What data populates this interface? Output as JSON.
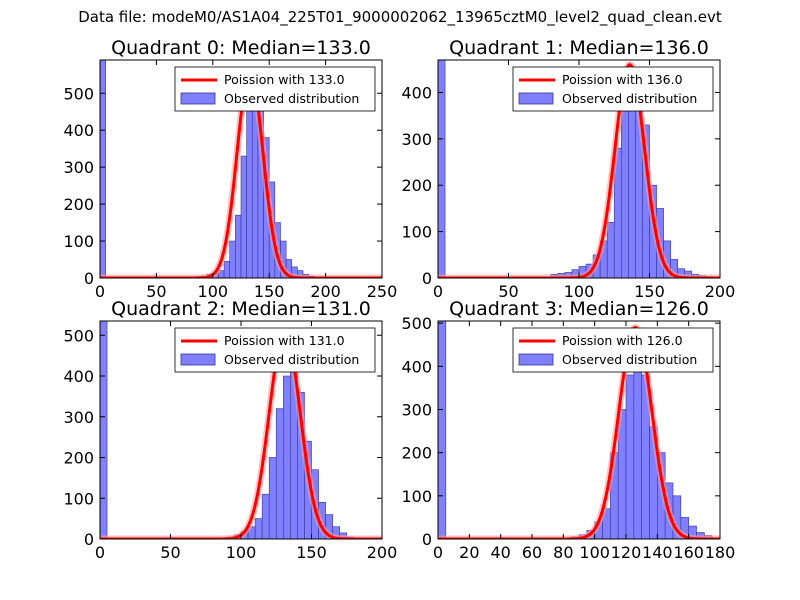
{
  "suptitle": "Data file: modeM0/AS1A04_225T01_9000002062_13965cztM0_level2_quad_clean.evt",
  "colors": {
    "fit": "#ff0000",
    "fit_halo": "#ff9999",
    "bar_fill": "#8080ff",
    "bar_edge": "#333399",
    "axes": "#000000"
  },
  "chart_data": [
    {
      "type": "bar",
      "title": "Quadrant 0: Median=133.0",
      "xlim": [
        0,
        250
      ],
      "ylim": [
        0,
        590
      ],
      "xticks": [
        0,
        50,
        100,
        150,
        200,
        250
      ],
      "yticks": [
        0,
        100,
        200,
        300,
        400,
        500
      ],
      "legend": {
        "position": "top-right",
        "fit_label": "Poission with 133.0",
        "hist_label": "Observed distribution"
      },
      "median": 133.0,
      "peak": 560,
      "sigma": 11.5,
      "bins": [
        [
          0,
          590
        ],
        [
          70,
          1
        ],
        [
          75,
          2
        ],
        [
          80,
          3
        ],
        [
          85,
          4
        ],
        [
          90,
          5
        ],
        [
          95,
          10
        ],
        [
          100,
          12
        ],
        [
          105,
          20
        ],
        [
          110,
          45
        ],
        [
          115,
          100
        ],
        [
          120,
          170
        ],
        [
          125,
          330
        ],
        [
          130,
          480
        ],
        [
          135,
          480
        ],
        [
          140,
          460
        ],
        [
          145,
          380
        ],
        [
          150,
          260
        ],
        [
          155,
          150
        ],
        [
          160,
          100
        ],
        [
          165,
          50
        ],
        [
          170,
          30
        ],
        [
          175,
          20
        ],
        [
          180,
          10
        ],
        [
          185,
          5
        ],
        [
          190,
          2
        ]
      ]
    },
    {
      "type": "bar",
      "title": "Quadrant 1: Median=136.0",
      "xlim": [
        0,
        200
      ],
      "ylim": [
        0,
        470
      ],
      "xticks": [
        0,
        50,
        100,
        150,
        200
      ],
      "yticks": [
        0,
        100,
        200,
        300,
        400
      ],
      "legend": {
        "position": "top-right",
        "fit_label": "Poission with 136.0",
        "hist_label": "Observed distribution"
      },
      "median": 136.0,
      "peak": 460,
      "sigma": 10.5,
      "bins": [
        [
          0,
          470
        ],
        [
          80,
          8
        ],
        [
          85,
          10
        ],
        [
          90,
          12
        ],
        [
          95,
          18
        ],
        [
          100,
          25
        ],
        [
          105,
          30
        ],
        [
          110,
          50
        ],
        [
          115,
          80
        ],
        [
          120,
          120
        ],
        [
          125,
          280
        ],
        [
          130,
          380
        ],
        [
          135,
          440
        ],
        [
          140,
          430
        ],
        [
          145,
          330
        ],
        [
          150,
          200
        ],
        [
          155,
          150
        ],
        [
          160,
          80
        ],
        [
          165,
          40
        ],
        [
          170,
          20
        ],
        [
          175,
          15
        ],
        [
          180,
          8
        ],
        [
          185,
          5
        ],
        [
          190,
          3
        ]
      ]
    },
    {
      "type": "bar",
      "title": "Quadrant 2: Median=131.0",
      "xlim": [
        0,
        200
      ],
      "ylim": [
        0,
        535
      ],
      "xticks": [
        0,
        50,
        100,
        150,
        200
      ],
      "yticks": [
        0,
        100,
        200,
        300,
        400,
        500
      ],
      "legend": {
        "position": "top-right",
        "fit_label": "Poission with 131.0",
        "hist_label": "Observed distribution"
      },
      "median": 131.0,
      "peak": 510,
      "sigma": 11.0,
      "bins": [
        [
          0,
          535
        ],
        [
          85,
          3
        ],
        [
          90,
          5
        ],
        [
          95,
          10
        ],
        [
          100,
          18
        ],
        [
          105,
          30
        ],
        [
          110,
          50
        ],
        [
          115,
          110
        ],
        [
          120,
          200
        ],
        [
          125,
          320
        ],
        [
          130,
          400
        ],
        [
          135,
          430
        ],
        [
          140,
          360
        ],
        [
          145,
          240
        ],
        [
          150,
          170
        ],
        [
          155,
          90
        ],
        [
          160,
          60
        ],
        [
          165,
          30
        ],
        [
          170,
          15
        ],
        [
          175,
          5
        ],
        [
          180,
          2
        ]
      ]
    },
    {
      "type": "bar",
      "title": "Quadrant 3: Median=126.0",
      "xlim": [
        0,
        180
      ],
      "ylim": [
        0,
        505
      ],
      "xticks": [
        0,
        20,
        40,
        60,
        80,
        100,
        120,
        140,
        160,
        180
      ],
      "yticks": [
        0,
        100,
        200,
        300,
        400,
        500
      ],
      "legend": {
        "position": "top-right",
        "fit_label": "Poission with 126.0",
        "hist_label": "Observed distribution"
      },
      "median": 126.0,
      "peak": 490,
      "sigma": 10.5,
      "bins": [
        [
          0,
          505
        ],
        [
          80,
          2
        ],
        [
          85,
          5
        ],
        [
          90,
          10
        ],
        [
          95,
          20
        ],
        [
          100,
          40
        ],
        [
          105,
          70
        ],
        [
          110,
          200
        ],
        [
          115,
          300
        ],
        [
          120,
          380
        ],
        [
          125,
          420
        ],
        [
          130,
          380
        ],
        [
          135,
          260
        ],
        [
          140,
          200
        ],
        [
          145,
          130
        ],
        [
          150,
          100
        ],
        [
          155,
          50
        ],
        [
          160,
          30
        ],
        [
          165,
          15
        ],
        [
          170,
          8
        ],
        [
          175,
          3
        ]
      ]
    }
  ]
}
